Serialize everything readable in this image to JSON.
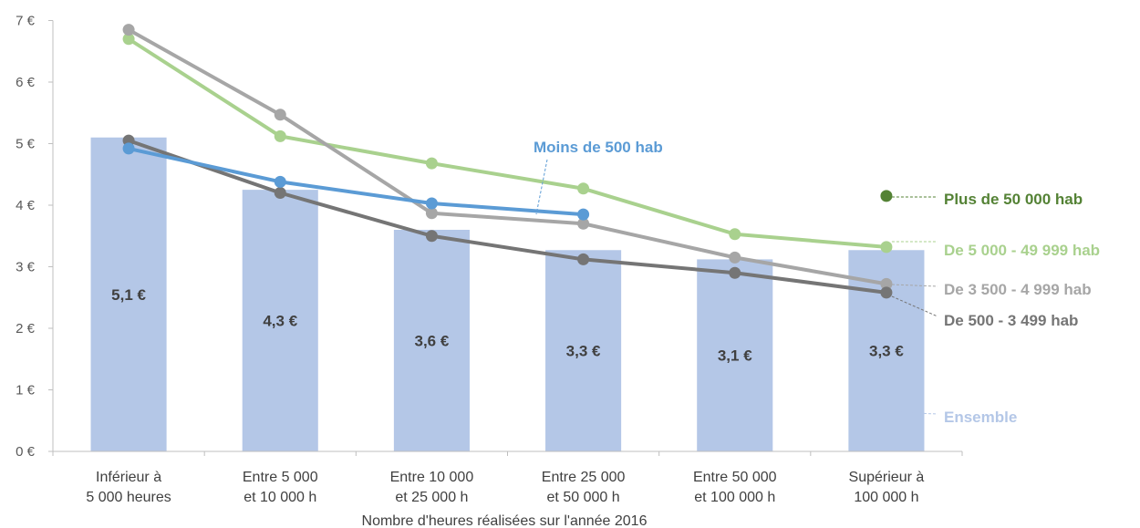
{
  "chart_data": {
    "type": "bar+line",
    "xlabel": "Nombre d'heures réalisées sur l'année 2016",
    "ylabel": "",
    "ylim": [
      0,
      7
    ],
    "yticks": [
      "0 €",
      "1 €",
      "2 €",
      "3 €",
      "4 €",
      "5 €",
      "6 €",
      "7 €"
    ],
    "grid": false,
    "categories": [
      [
        "Inférieur à",
        "5 000 heures"
      ],
      [
        "Entre 5 000",
        "et 10 000 h"
      ],
      [
        "Entre 10 000",
        "et 25 000 h"
      ],
      [
        "Entre 25 000",
        "et 50 000 h"
      ],
      [
        "Entre 50 000",
        "et 100 000 h"
      ],
      [
        "Supérieur à",
        "100 000 h"
      ]
    ],
    "bars": {
      "name": "Ensemble",
      "values": [
        5.1,
        4.25,
        3.6,
        3.27,
        3.12,
        3.27
      ],
      "labels": [
        "5,1 €",
        "4,3 €",
        "3,6 €",
        "3,3 €",
        "3,1 €",
        "3,3 €"
      ],
      "color": "#b4c7e7"
    },
    "series": [
      {
        "name": "Moins de 500 hab",
        "values": [
          4.92,
          4.38,
          4.03,
          3.85,
          null,
          null
        ],
        "color": "#5b9bd5"
      },
      {
        "name": "De 500 - 3 499 hab",
        "values": [
          5.05,
          4.2,
          3.5,
          3.12,
          2.9,
          2.58
        ],
        "color": "#757575"
      },
      {
        "name": "De 3 500 - 4 999 hab",
        "values": [
          6.85,
          5.47,
          3.87,
          3.7,
          3.15,
          2.72
        ],
        "color": "#a6a6a6"
      },
      {
        "name": "De 5 000 - 49 999 hab",
        "values": [
          6.7,
          5.12,
          4.68,
          4.27,
          3.53,
          3.32
        ],
        "color": "#a9d18e"
      },
      {
        "name": "Plus de 50 000 hab",
        "values": [
          null,
          null,
          null,
          null,
          null,
          4.15
        ],
        "color": "#548235"
      }
    ]
  }
}
